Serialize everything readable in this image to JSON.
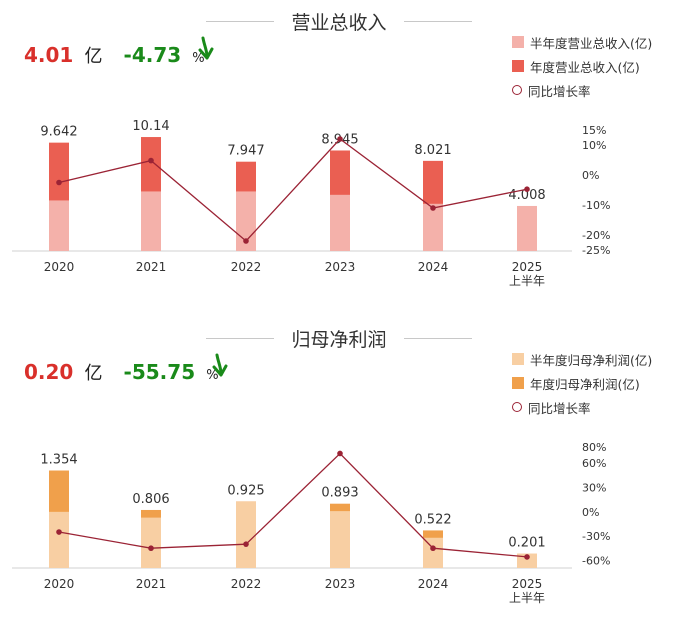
{
  "chart_data": [
    {
      "type": "bar",
      "title": "营业总收入",
      "headline": {
        "value": "4.01",
        "unit": "亿",
        "change": "-4.73",
        "change_unit": "%"
      },
      "categories": [
        "2020",
        "2021",
        "2022",
        "2023",
        "2024",
        "2025"
      ],
      "category_sublabels": [
        "",
        "",
        "",
        "",
        "",
        "上半年"
      ],
      "series": [
        {
          "name": "半年度营业总收入(亿)",
          "values": [
            4.5,
            5.3,
            5.3,
            5.0,
            4.2,
            4.008
          ],
          "color": "#f4b1aa"
        },
        {
          "name": "年度营业总收入(亿)",
          "values": [
            9.642,
            10.14,
            7.947,
            8.945,
            8.021,
            null
          ],
          "color": "#ea5f52"
        },
        {
          "name": "同比增长率",
          "values": [
            -2.5,
            4.8,
            -22.0,
            12.0,
            -11.0,
            -4.73
          ],
          "color": "#9b2335"
        }
      ],
      "data_labels": [
        "9.642",
        "10.14",
        "7.947",
        "8.945",
        "8.021",
        "4.008"
      ],
      "ylim": [
        0,
        10.5
      ],
      "right_axis": {
        "ticks": [
          "15%",
          "10%",
          "0%",
          "-10%",
          "-20%",
          "-25%"
        ],
        "values": [
          15,
          10,
          0,
          -10,
          -20,
          -25
        ],
        "range": [
          -25,
          15
        ]
      }
    },
    {
      "type": "bar",
      "title": "归母净利润",
      "headline": {
        "value": "0.20",
        "unit": "亿",
        "change": "-55.75",
        "change_unit": "%"
      },
      "categories": [
        "2020",
        "2021",
        "2022",
        "2023",
        "2024",
        "2025"
      ],
      "category_sublabels": [
        "",
        "",
        "",
        "",
        "",
        "上半年"
      ],
      "series": [
        {
          "name": "半年度归母净利润(亿)",
          "values": [
            0.78,
            0.7,
            0.925,
            0.79,
            0.42,
            0.201
          ],
          "color": "#f8cfa3"
        },
        {
          "name": "年度归母净利润(亿)",
          "values": [
            1.354,
            0.806,
            0.925,
            0.893,
            0.522,
            null
          ],
          "color": "#f0a04b"
        },
        {
          "name": "同比增长率",
          "values": [
            -25,
            -45,
            -40,
            72,
            -45,
            -55.75
          ],
          "color": "#9b2335"
        }
      ],
      "data_labels": [
        "1.354",
        "0.806",
        "0.925",
        "0.893",
        "0.522",
        "0.201"
      ],
      "ylim": [
        0,
        1.5
      ],
      "right_axis": {
        "ticks": [
          "80%",
          "60%",
          "30%",
          "0%",
          "-30%",
          "-60%"
        ],
        "values": [
          80,
          60,
          30,
          0,
          -30,
          -60
        ],
        "range": [
          -62,
          80
        ]
      }
    }
  ]
}
